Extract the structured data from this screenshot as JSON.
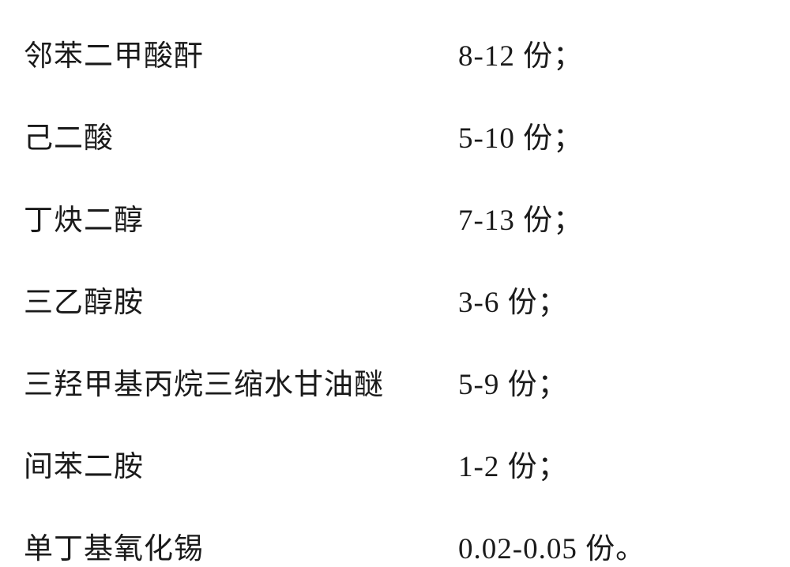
{
  "ingredients": {
    "type": "table",
    "columns": [
      "name",
      "amount"
    ],
    "text_color": "#1a1a1a",
    "background_color": "#ffffff",
    "font_family": "SimSun",
    "font_size": 37,
    "name_column_width": 550,
    "row_gap": 50,
    "rows": [
      {
        "name": "邻苯二甲酸酐",
        "amount": "8-12 份；"
      },
      {
        "name": "己二酸",
        "amount": "5-10 份；"
      },
      {
        "name": "丁炔二醇",
        "amount": "7-13 份；"
      },
      {
        "name": "三乙醇胺",
        "amount": "3-6 份；"
      },
      {
        "name": "三羟甲基丙烷三缩水甘油醚",
        "amount": "5-9 份；"
      },
      {
        "name": "间苯二胺",
        "amount": "1-2 份；"
      },
      {
        "name": "单丁基氧化锡",
        "amount": "0.02-0.05 份。"
      }
    ]
  }
}
